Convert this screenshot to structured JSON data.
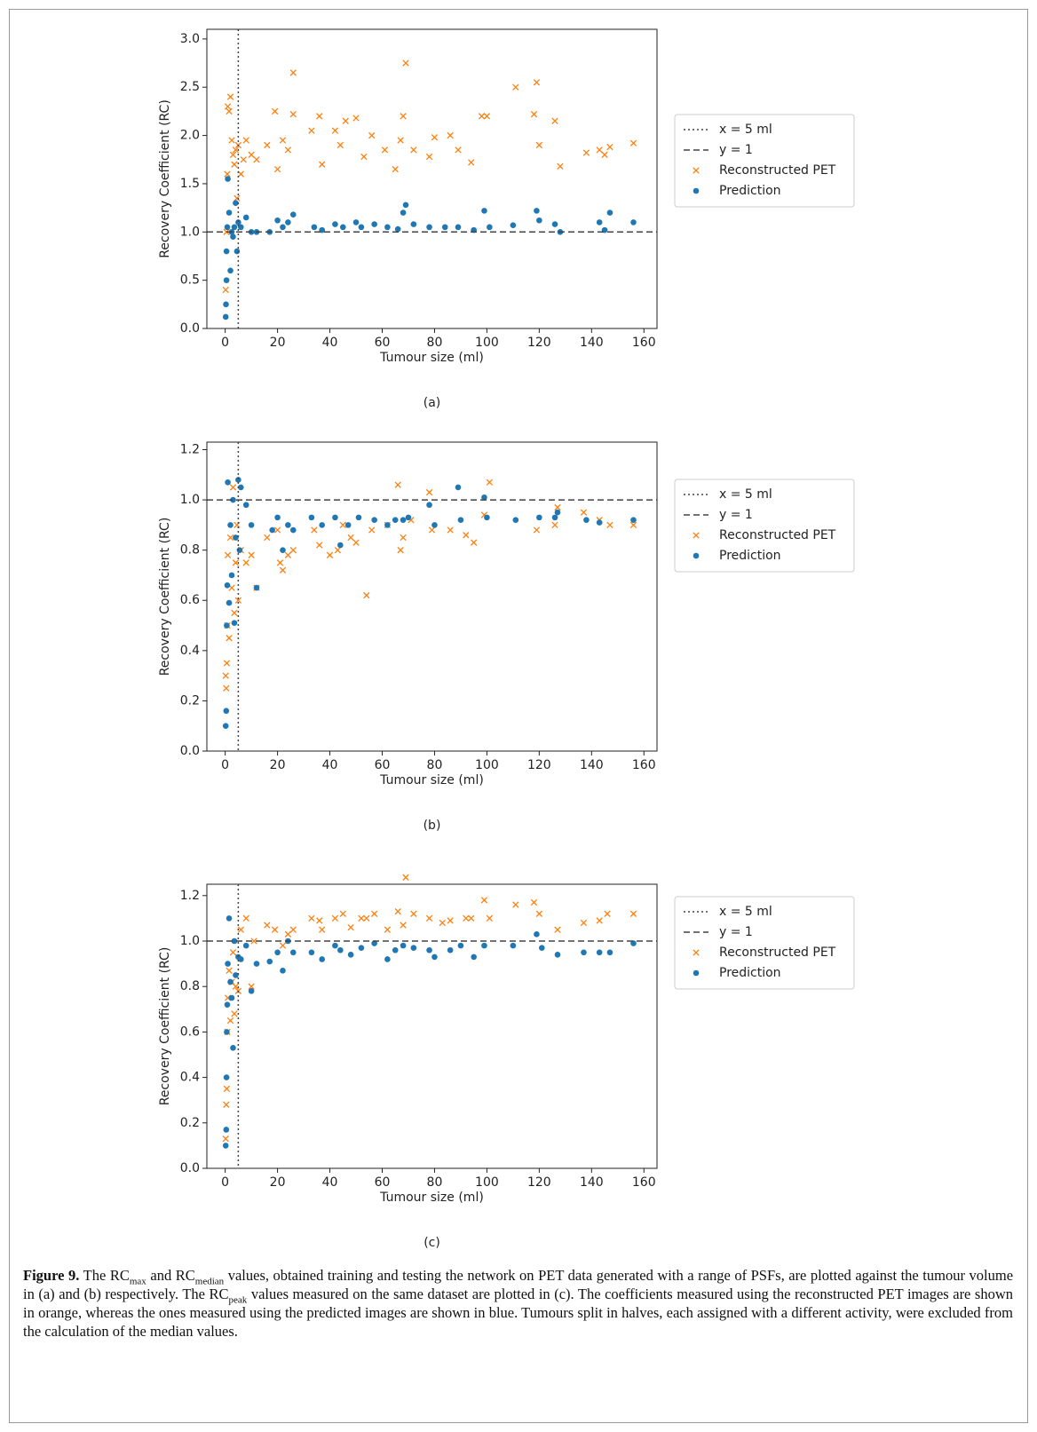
{
  "chart_data": [
    {
      "type": "scatter",
      "panel_label": "(a)",
      "x_label": "Tumour size (ml)",
      "y_label": "Recovery Coefficient (RC)",
      "xlim": [
        -7,
        165
      ],
      "xticks": [
        0,
        20,
        40,
        60,
        80,
        100,
        120,
        140,
        160
      ],
      "ylim": [
        0,
        3.1
      ],
      "yticks": [
        {
          "value": 0,
          "label": "0.0"
        },
        {
          "value": 0.5,
          "label": "0.5"
        },
        {
          "value": 1,
          "label": "1.0"
        },
        {
          "value": 1.5,
          "label": "1.5"
        },
        {
          "value": 2,
          "label": "2.0"
        },
        {
          "value": 2.5,
          "label": "2.5"
        },
        {
          "value": 3,
          "label": "3.0"
        }
      ],
      "legend": "outside-right",
      "reference_lines": [
        {
          "name": "x = 5 ml",
          "axis": "x",
          "value": 5,
          "style": "dotted"
        },
        {
          "name": "y = 1",
          "axis": "y",
          "value": 1,
          "style": "dashed"
        }
      ],
      "series": [
        {
          "name": "Reconstructed PET",
          "color": "#ff7f0e",
          "marker": "x",
          "x": [
            0.2,
            0.5,
            0.8,
            1,
            1.5,
            2,
            2.5,
            3,
            3.5,
            4,
            4.5,
            5,
            6,
            7,
            8,
            10,
            12,
            16,
            19,
            20,
            22,
            24,
            26,
            26,
            33,
            36,
            37,
            42,
            44,
            46,
            50,
            53,
            56,
            61,
            65,
            67,
            68,
            69,
            72,
            78,
            80,
            86,
            89,
            94,
            98,
            100,
            111,
            118,
            119,
            120,
            126,
            128,
            138,
            143,
            145,
            147,
            156
          ],
          "values": [
            0.4,
            1.0,
            1.6,
            2.3,
            2.25,
            2.4,
            1.95,
            1.8,
            1.7,
            1.85,
            1.35,
            1.9,
            1.6,
            1.75,
            1.95,
            1.8,
            1.75,
            1.9,
            2.25,
            1.65,
            1.95,
            1.85,
            2.65,
            2.22,
            2.05,
            2.2,
            1.7,
            2.05,
            1.9,
            2.15,
            2.18,
            1.78,
            2.0,
            1.85,
            1.65,
            1.95,
            2.2,
            2.75,
            1.85,
            1.78,
            1.98,
            2.0,
            1.85,
            1.72,
            2.2,
            2.2,
            2.5,
            2.22,
            2.55,
            1.9,
            2.15,
            1.68,
            1.82,
            1.85,
            1.8,
            1.88,
            1.92
          ]
        },
        {
          "name": "Prediction",
          "color": "#1f77b4",
          "marker": "o",
          "x": [
            0.2,
            0.3,
            0.5,
            0.5,
            0.8,
            1,
            1.5,
            2,
            2.5,
            3,
            3.5,
            4,
            4.5,
            5,
            6,
            8,
            10,
            12,
            17,
            20,
            22,
            24,
            26,
            34,
            37,
            42,
            45,
            50,
            52,
            57,
            62,
            66,
            68,
            69,
            72,
            78,
            84,
            89,
            95,
            99,
            101,
            110,
            119,
            120,
            126,
            128,
            143,
            145,
            147,
            156
          ],
          "values": [
            0.12,
            0.25,
            0.5,
            0.8,
            1.05,
            1.55,
            1.2,
            0.6,
            1.0,
            0.95,
            1.05,
            1.3,
            0.8,
            1.1,
            1.05,
            1.15,
            1.0,
            1.0,
            1.0,
            1.12,
            1.05,
            1.1,
            1.18,
            1.05,
            1.02,
            1.08,
            1.05,
            1.1,
            1.05,
            1.08,
            1.05,
            1.03,
            1.2,
            1.28,
            1.08,
            1.05,
            1.05,
            1.05,
            1.02,
            1.22,
            1.05,
            1.07,
            1.22,
            1.12,
            1.08,
            1.0,
            1.1,
            1.02,
            1.2,
            1.1
          ]
        }
      ]
    },
    {
      "type": "scatter",
      "panel_label": "(b)",
      "x_label": "Tumour size (ml)",
      "y_label": "Recovery Coefficient (RC)",
      "xlim": [
        -7,
        165
      ],
      "xticks": [
        0,
        20,
        40,
        60,
        80,
        100,
        120,
        140,
        160
      ],
      "ylim": [
        0,
        1.23
      ],
      "yticks": [
        {
          "value": 0,
          "label": "0.0"
        },
        {
          "value": 0.2,
          "label": "0.2"
        },
        {
          "value": 0.4,
          "label": "0.4"
        },
        {
          "value": 0.6,
          "label": "0.6"
        },
        {
          "value": 0.8,
          "label": "0.8"
        },
        {
          "value": 1,
          "label": "1.0"
        },
        {
          "value": 1.2,
          "label": "1.2"
        }
      ],
      "legend": "outside-right",
      "reference_lines": [
        {
          "name": "x = 5 ml",
          "axis": "x",
          "value": 5,
          "style": "dotted"
        },
        {
          "name": "y = 1",
          "axis": "y",
          "value": 1,
          "style": "dashed"
        }
      ],
      "series": [
        {
          "name": "Reconstructed PET",
          "color": "#ff7f0e",
          "marker": "x",
          "x": [
            0.2,
            0.4,
            0.6,
            0.8,
            1,
            1.5,
            2,
            2.5,
            3,
            3.5,
            4,
            4.5,
            5,
            6,
            8,
            10,
            12,
            16,
            20,
            21,
            22,
            24,
            26,
            34,
            36,
            40,
            43,
            45,
            48,
            50,
            54,
            56,
            62,
            66,
            67,
            68,
            71,
            78,
            79,
            86,
            92,
            95,
            99,
            101,
            119,
            126,
            127,
            137,
            143,
            147,
            156
          ],
          "values": [
            0.3,
            0.25,
            0.35,
            0.5,
            0.78,
            0.45,
            0.85,
            0.65,
            1.05,
            0.55,
            0.75,
            0.9,
            0.6,
            0.8,
            0.75,
            0.78,
            0.65,
            0.85,
            0.88,
            0.75,
            0.72,
            0.78,
            0.8,
            0.88,
            0.82,
            0.78,
            0.8,
            0.9,
            0.85,
            0.83,
            0.62,
            0.88,
            0.9,
            1.06,
            0.8,
            0.85,
            0.92,
            1.03,
            0.88,
            0.88,
            0.86,
            0.83,
            0.94,
            1.07,
            0.88,
            0.9,
            0.97,
            0.95,
            0.92,
            0.9,
            0.9
          ]
        },
        {
          "name": "Prediction",
          "color": "#1f77b4",
          "marker": "o",
          "x": [
            0.2,
            0.4,
            0.6,
            0.8,
            1,
            1.5,
            2,
            2.5,
            3,
            3.5,
            4,
            5,
            5.5,
            6,
            8,
            10,
            12,
            18,
            20,
            22,
            24,
            26,
            33,
            37,
            42,
            44,
            47,
            51,
            57,
            62,
            65,
            68,
            70,
            78,
            80,
            89,
            90,
            99,
            100,
            111,
            120,
            126,
            127,
            138,
            143,
            156
          ],
          "values": [
            0.1,
            0.16,
            0.5,
            0.66,
            1.07,
            0.59,
            0.9,
            0.7,
            1.0,
            0.51,
            0.85,
            1.08,
            0.8,
            1.05,
            0.98,
            0.9,
            0.65,
            0.88,
            0.93,
            0.8,
            0.9,
            0.88,
            0.93,
            0.9,
            0.93,
            0.82,
            0.9,
            0.93,
            0.92,
            0.9,
            0.92,
            0.92,
            0.93,
            0.98,
            0.9,
            1.05,
            0.92,
            1.01,
            0.93,
            0.92,
            0.93,
            0.93,
            0.95,
            0.92,
            0.91,
            0.92
          ]
        }
      ]
    },
    {
      "type": "scatter",
      "panel_label": "(c)",
      "x_label": "Tumour size (ml)",
      "y_label": "Recovery Coefficient (RC)",
      "xlim": [
        -7,
        165
      ],
      "xticks": [
        0,
        20,
        40,
        60,
        80,
        100,
        120,
        140,
        160
      ],
      "ylim": [
        0,
        1.25
      ],
      "yticks": [
        {
          "value": 0,
          "label": "0.0"
        },
        {
          "value": 0.2,
          "label": "0.2"
        },
        {
          "value": 0.4,
          "label": "0.4"
        },
        {
          "value": 0.6,
          "label": "0.6"
        },
        {
          "value": 0.8,
          "label": "0.8"
        },
        {
          "value": 1,
          "label": "1.0"
        },
        {
          "value": 1.2,
          "label": "1.2"
        }
      ],
      "legend": "outside-right",
      "reference_lines": [
        {
          "name": "x = 5 ml",
          "axis": "x",
          "value": 5,
          "style": "dotted"
        },
        {
          "name": "y = 1",
          "axis": "y",
          "value": 1,
          "style": "dashed"
        }
      ],
      "series": [
        {
          "name": "Reconstructed PET",
          "color": "#ff7f0e",
          "marker": "x",
          "x": [
            0.2,
            0.4,
            0.6,
            0.8,
            1,
            1.5,
            2,
            2.5,
            3,
            3.5,
            4,
            5,
            6,
            8,
            10,
            11,
            16,
            19,
            22,
            24,
            26,
            33,
            36,
            37,
            42,
            45,
            48,
            52,
            54,
            57,
            62,
            66,
            68,
            69,
            72,
            78,
            83,
            86,
            92,
            94,
            99,
            101,
            111,
            118,
            120,
            127,
            137,
            143,
            146,
            156
          ],
          "values": [
            0.13,
            0.28,
            0.35,
            0.6,
            0.75,
            0.87,
            0.65,
            0.82,
            0.95,
            0.68,
            0.8,
            0.78,
            1.05,
            1.1,
            0.8,
            1.0,
            1.07,
            1.05,
            0.98,
            1.03,
            1.05,
            1.1,
            1.09,
            1.05,
            1.1,
            1.12,
            1.06,
            1.1,
            1.1,
            1.12,
            1.05,
            1.13,
            1.07,
            1.28,
            1.12,
            1.1,
            1.08,
            1.09,
            1.1,
            1.1,
            1.18,
            1.1,
            1.16,
            1.17,
            1.12,
            1.05,
            1.08,
            1.09,
            1.12,
            1.12
          ]
        },
        {
          "name": "Prediction",
          "color": "#1f77b4",
          "marker": "o",
          "x": [
            0.2,
            0.4,
            0.5,
            0.6,
            0.8,
            1,
            1.5,
            2,
            2.5,
            3,
            3.5,
            4,
            5,
            6,
            8,
            10,
            12,
            17,
            20,
            22,
            24,
            26,
            33,
            37,
            42,
            44,
            48,
            52,
            57,
            62,
            65,
            68,
            72,
            78,
            80,
            86,
            90,
            95,
            99,
            110,
            119,
            121,
            127,
            137,
            143,
            147,
            156
          ],
          "values": [
            0.1,
            0.17,
            0.4,
            0.6,
            0.72,
            0.9,
            1.1,
            0.82,
            0.75,
            0.53,
            1.0,
            0.85,
            0.93,
            0.92,
            0.98,
            0.78,
            0.9,
            0.91,
            0.95,
            0.87,
            1.0,
            0.95,
            0.95,
            0.92,
            0.98,
            0.96,
            0.94,
            0.97,
            0.99,
            0.92,
            0.96,
            0.98,
            0.97,
            0.96,
            0.93,
            0.96,
            0.98,
            0.93,
            0.98,
            0.98,
            1.03,
            0.97,
            0.94,
            0.95,
            0.95,
            0.95,
            0.99
          ]
        }
      ]
    }
  ],
  "caption": {
    "label": "Figure 9.",
    "parts": [
      "The RC",
      "max",
      "and RC",
      "median",
      "values, obtained training and testing the network on PET data generated with a range of PSFs, are plotted against the tumour volume in (a) and (b) respectively. The RC",
      "peak",
      "values measured on the same dataset are plotted in (c). The coefficients measured using the reconstructed PET images are shown in orange, whereas the ones measured using the predicted images are shown in blue. Tumours split in halves, each assigned with a different activity, were excluded from the calculation of the median values."
    ]
  }
}
